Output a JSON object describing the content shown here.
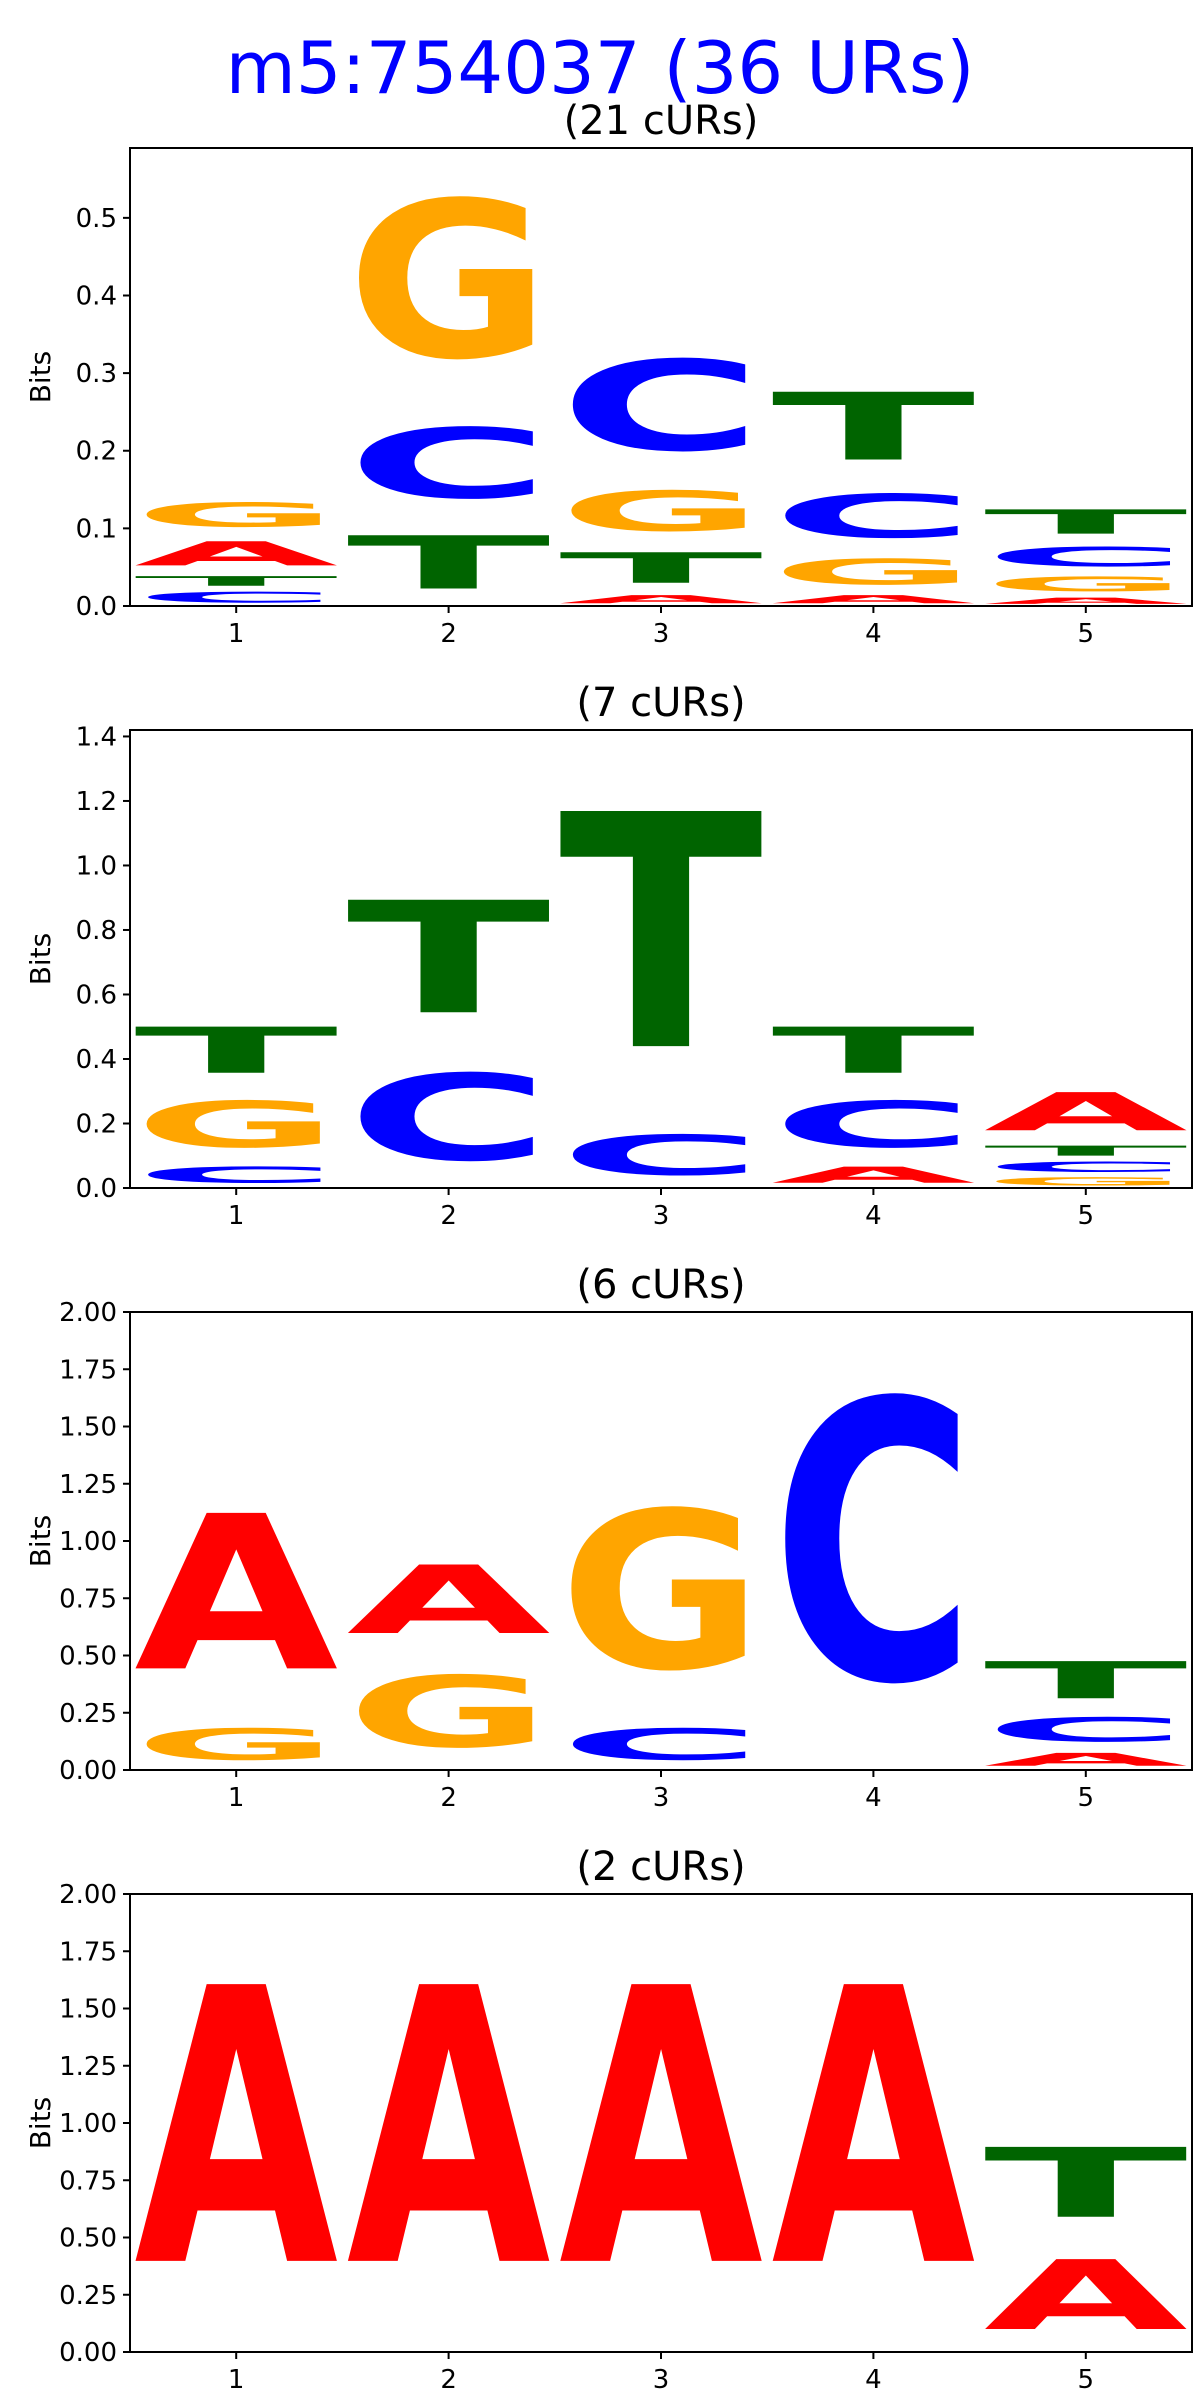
{
  "title": "m5:754037 (36 URs)",
  "colors": {
    "A": "#ff0000",
    "C": "#0000ff",
    "G": "#ffa500",
    "T": "#006400",
    "title": "#0000ff"
  },
  "chart_data": [
    {
      "type": "sequence-logo",
      "title": "(21 cURs)",
      "ylabel": "Bits",
      "xticks": [
        "1",
        "2",
        "3",
        "4",
        "5"
      ],
      "yticks": [
        "0.0",
        "0.1",
        "0.2",
        "0.3",
        "0.4",
        "0.5"
      ],
      "ylim": [
        0,
        0.59
      ],
      "positions": [
        {
          "x": "1",
          "stack": [
            [
              "C",
              0.022
            ],
            [
              "T",
              0.02
            ],
            [
              "A",
              0.05
            ],
            [
              "G",
              0.05
            ]
          ]
        },
        {
          "x": "2",
          "stack": [
            [
              "T",
              0.11
            ],
            [
              "C",
              0.145
            ],
            [
              "G",
              0.325
            ]
          ]
        },
        {
          "x": "3",
          "stack": [
            [
              "A",
              0.017
            ],
            [
              "T",
              0.063
            ],
            [
              "G",
              0.083
            ],
            [
              "C",
              0.187
            ]
          ]
        },
        {
          "x": "4",
          "stack": [
            [
              "A",
              0.017
            ],
            [
              "G",
              0.053
            ],
            [
              "C",
              0.09
            ],
            [
              "T",
              0.14
            ]
          ]
        },
        {
          "x": "5",
          "stack": [
            [
              "A",
              0.013
            ],
            [
              "G",
              0.03
            ],
            [
              "C",
              0.04
            ],
            [
              "T",
              0.05
            ]
          ]
        }
      ]
    },
    {
      "type": "sequence-logo",
      "title": "(7 cURs)",
      "ylabel": "Bits",
      "xticks": [
        "1",
        "2",
        "3",
        "4",
        "5"
      ],
      "yticks": [
        "0.0",
        "0.2",
        "0.4",
        "0.6",
        "0.8",
        "1.0",
        "1.2",
        "1.4"
      ],
      "ylim": [
        0,
        1.42
      ],
      "positions": [
        {
          "x": "1",
          "stack": [
            [
              "C",
              0.08
            ],
            [
              "G",
              0.23
            ],
            [
              "T",
              0.23
            ]
          ]
        },
        {
          "x": "2",
          "stack": [
            [
              "C",
              0.43
            ],
            [
              "T",
              0.56
            ]
          ]
        },
        {
          "x": "3",
          "stack": [
            [
              "C",
              0.2
            ],
            [
              "T",
              1.17
            ]
          ]
        },
        {
          "x": "4",
          "stack": [
            [
              "A",
              0.08
            ],
            [
              "C",
              0.23
            ],
            [
              "T",
              0.23
            ]
          ]
        },
        {
          "x": "5",
          "stack": [
            [
              "G",
              0.04
            ],
            [
              "C",
              0.05
            ],
            [
              "T",
              0.05
            ],
            [
              "A",
              0.19
            ]
          ]
        }
      ]
    },
    {
      "type": "sequence-logo",
      "title": "(6 cURs)",
      "ylabel": "Bits",
      "xticks": [
        "1",
        "2",
        "3",
        "4",
        "5"
      ],
      "yticks": [
        "0.00",
        "0.25",
        "0.50",
        "0.75",
        "1.00",
        "1.25",
        "1.50",
        "1.75",
        "2.00"
      ],
      "ylim": [
        0,
        2.0
      ],
      "positions": [
        {
          "x": "1",
          "stack": [
            [
              "G",
              0.22
            ],
            [
              "A",
              1.09
            ]
          ]
        },
        {
          "x": "2",
          "stack": [
            [
              "G",
              0.5
            ],
            [
              "A",
              0.48
            ]
          ]
        },
        {
          "x": "3",
          "stack": [
            [
              "C",
              0.22
            ],
            [
              "G",
              1.11
            ]
          ]
        },
        {
          "x": "4",
          "stack": [
            [
              "C",
              1.96
            ]
          ]
        },
        {
          "x": "5",
          "stack": [
            [
              "A",
              0.09
            ],
            [
              "C",
              0.17
            ],
            [
              "T",
              0.26
            ]
          ]
        }
      ]
    },
    {
      "type": "sequence-logo",
      "title": "(2 cURs)",
      "ylabel": "Bits",
      "xticks": [
        "1",
        "2",
        "3",
        "4",
        "5"
      ],
      "yticks": [
        "0.00",
        "0.25",
        "0.50",
        "0.75",
        "1.00",
        "1.25",
        "1.50",
        "1.75",
        "2.00"
      ],
      "ylim": [
        0,
        2.0
      ],
      "positions": [
        {
          "x": "1",
          "stack": [
            [
              "A",
              1.94
            ]
          ]
        },
        {
          "x": "2",
          "stack": [
            [
              "A",
              1.94
            ]
          ]
        },
        {
          "x": "3",
          "stack": [
            [
              "A",
              1.94
            ]
          ]
        },
        {
          "x": "4",
          "stack": [
            [
              "A",
              1.94
            ]
          ]
        },
        {
          "x": "5",
          "stack": [
            [
              "A",
              0.49
            ],
            [
              "T",
              0.49
            ]
          ]
        }
      ]
    }
  ]
}
